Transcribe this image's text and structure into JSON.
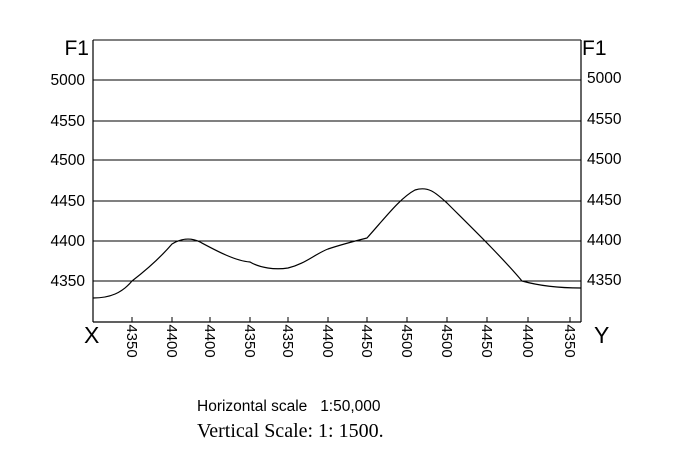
{
  "left_label": "F1",
  "right_label": "F1",
  "start_label": "X",
  "end_label": "Y",
  "y_ticks": [
    "5000",
    "4550",
    "4500",
    "4450",
    "4400",
    "4350"
  ],
  "x_ticks": [
    "4350",
    "4400",
    "4400",
    "4350",
    "4350",
    "4400",
    "4450",
    "4500",
    "4500",
    "4450",
    "4400",
    "4350"
  ],
  "captions": {
    "horizontal": "Horizontal scale   1:50,000",
    "vertical": "Vertical Scale: 1: 1500."
  }
}
